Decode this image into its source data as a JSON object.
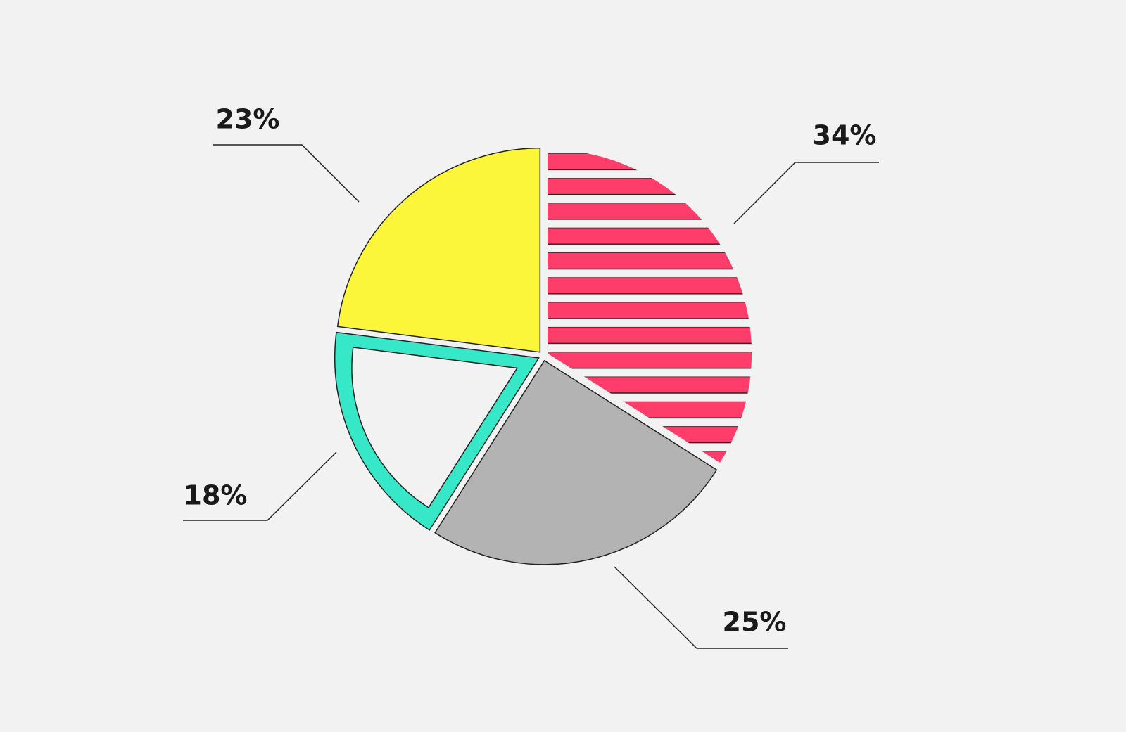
{
  "chart_data": {
    "type": "pie",
    "values": [
      34,
      25,
      18,
      23
    ],
    "value_labels": [
      "34%",
      "25%",
      "18%",
      "23%"
    ],
    "colors": [
      "#ff3d6b",
      "#b3b3b3",
      "#36e8c8",
      "#fbf63a"
    ]
  }
}
